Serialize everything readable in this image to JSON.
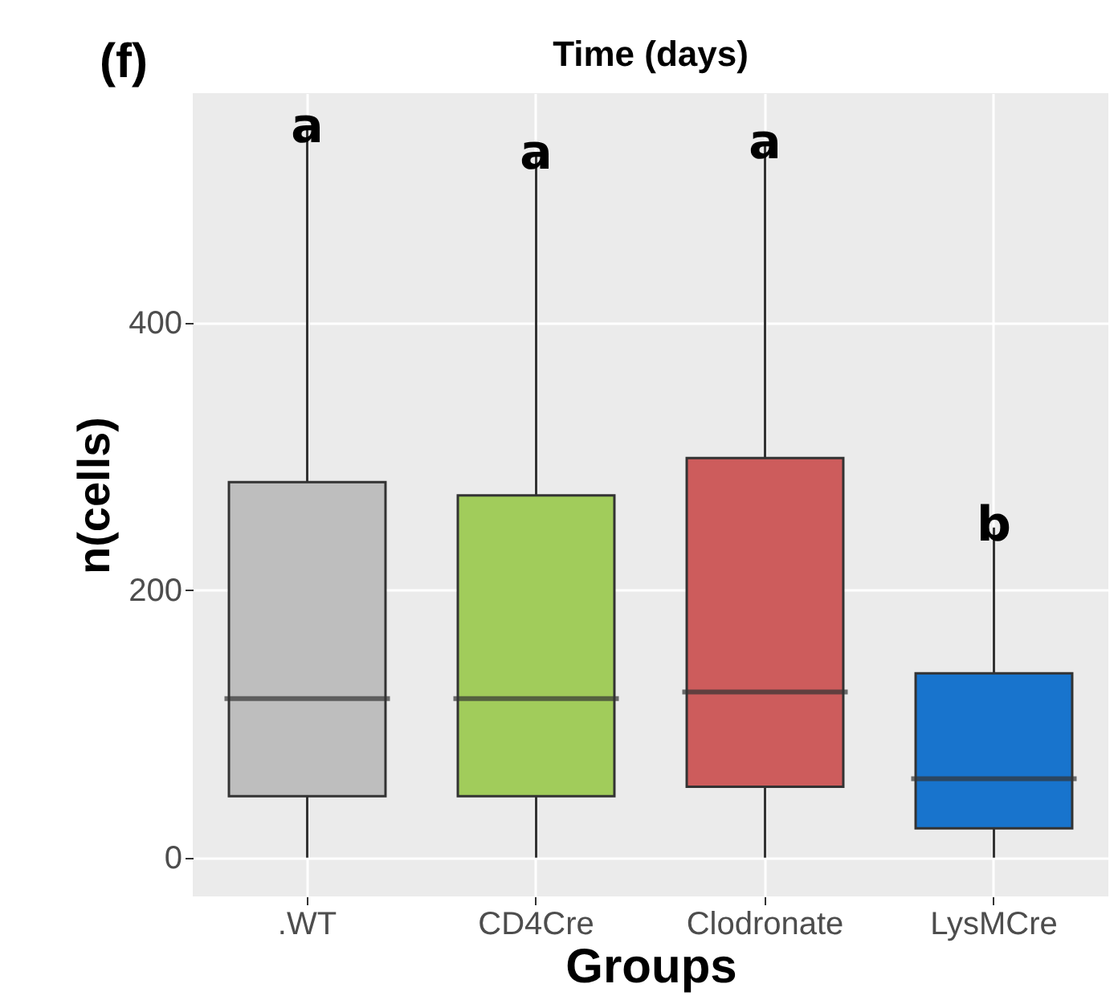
{
  "chart_data": {
    "type": "box",
    "title": "Time (days)",
    "xlabel": "Groups",
    "ylabel": "n(cells)",
    "categories": [
      ".WT",
      "CD4Cre",
      "Clodronate",
      "LysMCre"
    ],
    "colors": [
      "#bebebe",
      "#a1cc5b",
      "#cd5c5c",
      "#1874cd"
    ],
    "boxes": [
      {
        "low": 0,
        "q1": 46,
        "median": 119,
        "q3": 281,
        "high": 545
      },
      {
        "low": 0,
        "q1": 46,
        "median": 119,
        "q3": 271,
        "high": 525
      },
      {
        "low": 0,
        "q1": 53,
        "median": 124,
        "q3": 299,
        "high": 533
      },
      {
        "low": 0,
        "q1": 22,
        "median": 59,
        "q3": 138,
        "high": 247
      }
    ],
    "ylim": [
      -29,
      572
    ],
    "yticks": [
      0,
      200,
      400
    ],
    "grid": true,
    "annotations": [
      "(f)",
      "a",
      "a",
      "a",
      "b"
    ]
  }
}
